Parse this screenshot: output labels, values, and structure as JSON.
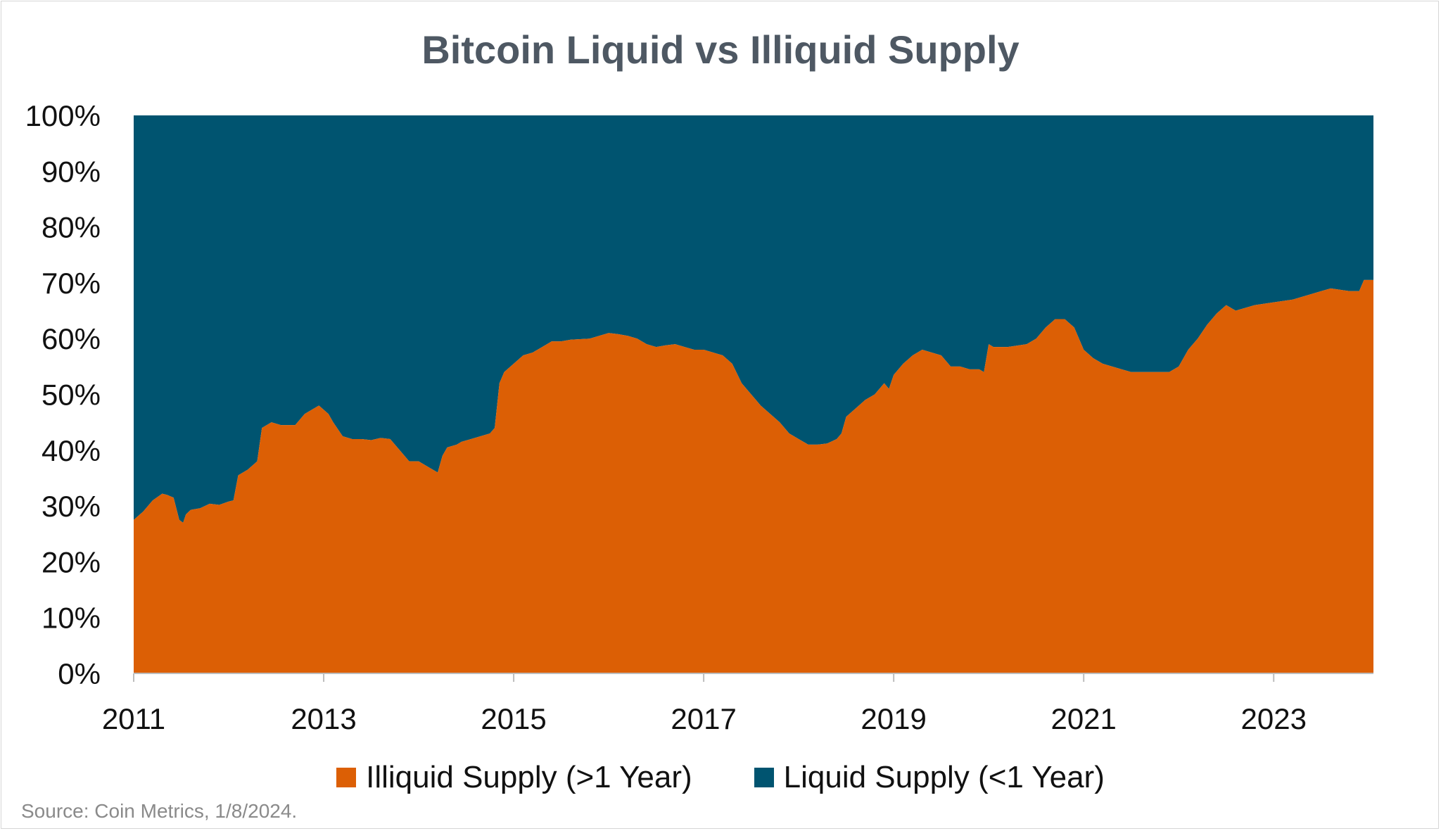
{
  "chart_data": {
    "type": "area",
    "stacked": true,
    "title": "Bitcoin Liquid vs Illiquid Supply",
    "xlabel": "",
    "ylabel": "",
    "xlim": [
      2011.0,
      2024.05
    ],
    "ylim": [
      0,
      100
    ],
    "y_ticks": [
      "0%",
      "10%",
      "20%",
      "30%",
      "40%",
      "50%",
      "60%",
      "70%",
      "80%",
      "90%",
      "100%"
    ],
    "x_ticks": [
      "2011",
      "2013",
      "2015",
      "2017",
      "2019",
      "2021",
      "2023"
    ],
    "grid": false,
    "legend_placement": "bottom",
    "series": [
      {
        "name": "Illiquid Supply (>1 Year)",
        "color": "#DC5F05",
        "x": [
          2011.0,
          2011.1,
          2011.2,
          2011.3,
          2011.35,
          2011.42,
          2011.48,
          2011.52,
          2011.55,
          2011.6,
          2011.7,
          2011.8,
          2011.9,
          2012.0,
          2012.05,
          2012.1,
          2012.15,
          2012.2,
          2012.3,
          2012.35,
          2012.45,
          2012.55,
          2012.7,
          2012.8,
          2012.85,
          2012.95,
          2013.05,
          2013.1,
          2013.2,
          2013.3,
          2013.4,
          2013.5,
          2013.6,
          2013.7,
          2013.8,
          2013.9,
          2014.0,
          2014.1,
          2014.2,
          2014.25,
          2014.3,
          2014.4,
          2014.45,
          2014.55,
          2014.65,
          2014.75,
          2014.8,
          2014.85,
          2014.9,
          2015.0,
          2015.1,
          2015.2,
          2015.3,
          2015.4,
          2015.5,
          2015.6,
          2015.8,
          2016.0,
          2016.1,
          2016.2,
          2016.3,
          2016.4,
          2016.5,
          2016.6,
          2016.7,
          2016.8,
          2016.9,
          2017.0,
          2017.1,
          2017.2,
          2017.3,
          2017.4,
          2017.5,
          2017.55,
          2017.6,
          2017.7,
          2017.8,
          2017.9,
          2018.0,
          2018.1,
          2018.2,
          2018.3,
          2018.4,
          2018.45,
          2018.5,
          2018.6,
          2018.7,
          2018.8,
          2018.9,
          2018.95,
          2019.0,
          2019.1,
          2019.2,
          2019.3,
          2019.4,
          2019.5,
          2019.6,
          2019.7,
          2019.8,
          2019.9,
          2019.95,
          2020.0,
          2020.05,
          2020.2,
          2020.4,
          2020.5,
          2020.6,
          2020.7,
          2020.8,
          2020.9,
          2021.0,
          2021.1,
          2021.2,
          2021.3,
          2021.4,
          2021.5,
          2021.6,
          2021.7,
          2021.8,
          2021.9,
          2022.0,
          2022.1,
          2022.2,
          2022.3,
          2022.4,
          2022.5,
          2022.6,
          2022.8,
          2023.0,
          2023.2,
          2023.3,
          2023.4,
          2023.5,
          2023.6,
          2023.8,
          2023.9,
          2023.95,
          2024.05
        ],
        "values": [
          27.5,
          29.0,
          31.0,
          32.2,
          32.0,
          31.5,
          27.5,
          27.0,
          28.5,
          29.3,
          29.6,
          30.4,
          30.2,
          30.8,
          31.0,
          35.5,
          36.0,
          36.5,
          38.0,
          44.0,
          45.0,
          44.5,
          44.5,
          46.5,
          47.0,
          48.0,
          46.5,
          45.0,
          42.5,
          42.0,
          42.0,
          41.8,
          42.2,
          42.0,
          40.0,
          38.0,
          38.0,
          37.0,
          36.0,
          39.0,
          40.5,
          41.0,
          41.5,
          42.0,
          42.5,
          43.0,
          44.0,
          52.0,
          54.0,
          55.5,
          57.0,
          57.5,
          58.5,
          59.5,
          59.5,
          59.8,
          60.0,
          61.0,
          60.8,
          60.5,
          60.0,
          59.0,
          58.5,
          58.8,
          59.0,
          58.5,
          58.0,
          58.0,
          57.5,
          57.0,
          55.5,
          52.0,
          50.0,
          49.0,
          48.0,
          46.5,
          45.0,
          43.0,
          42.0,
          41.0,
          41.0,
          41.2,
          42.0,
          43.0,
          46.0,
          47.5,
          49.0,
          50.0,
          52.0,
          51.0,
          53.5,
          55.5,
          57.0,
          58.0,
          57.5,
          57.0,
          55.0,
          55.0,
          54.5,
          54.5,
          54.0,
          59.0,
          58.5,
          58.5,
          59.0,
          60.0,
          62.0,
          63.5,
          63.5,
          62.0,
          58.0,
          56.5,
          55.5,
          55.0,
          54.5,
          54.0,
          54.0,
          54.0,
          54.0,
          54.0,
          55.0,
          58.0,
          60.0,
          62.5,
          64.5,
          66.0,
          65.0,
          66.0,
          66.5,
          67.0,
          67.5,
          68.0,
          68.5,
          69.0,
          68.5,
          68.5,
          70.5,
          70.5
        ]
      },
      {
        "name": "Liquid Supply (<1 Year)",
        "color": "#005470",
        "fills_to": 100
      }
    ],
    "source": "Source: Coin Metrics, 1/8/2024."
  }
}
